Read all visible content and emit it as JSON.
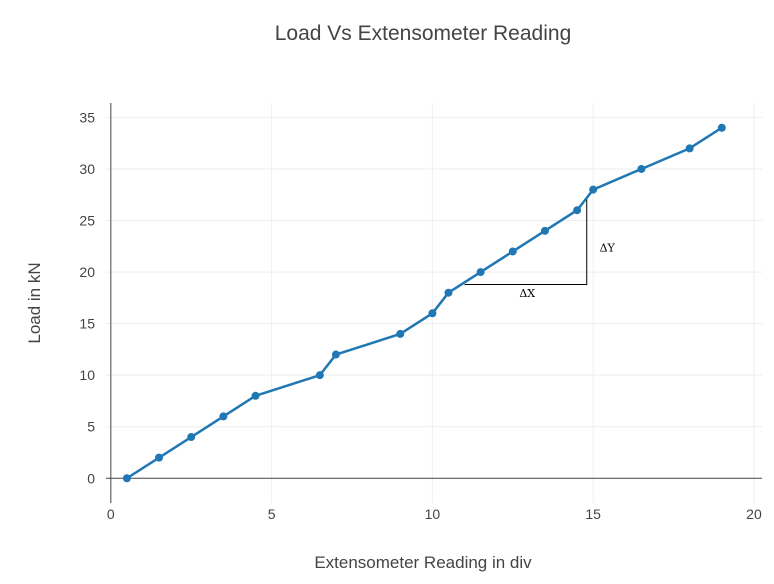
{
  "chart_data": {
    "type": "line",
    "title": "Load Vs Extensometer Reading",
    "xlabel": "Extensometer Reading in div",
    "ylabel": "Load in kN",
    "xlim": [
      -0.15,
      20.25
    ],
    "ylim": [
      -2.4,
      36.4
    ],
    "xticks": [
      0,
      5,
      10,
      15,
      20
    ],
    "yticks": [
      0,
      5,
      10,
      15,
      20,
      25,
      30,
      35
    ],
    "grid": true,
    "legend": "none",
    "series": [
      {
        "x": [
          0.5,
          1.5,
          2.5,
          3.5,
          4.5,
          6.5,
          7,
          9,
          10,
          10.5,
          11.5,
          12.5,
          13.5,
          14.5,
          15,
          16.5,
          18,
          19
        ],
        "y": [
          0,
          2,
          4,
          6,
          8,
          10,
          12,
          14,
          16,
          18,
          20,
          22,
          24,
          26,
          28,
          30,
          32,
          34
        ],
        "color": "#1f77b4"
      }
    ],
    "annotations": {
      "slope_triangle": {
        "x0": 11,
        "x1": 14.8,
        "y0": 18.8,
        "y1": 27.2,
        "color": "#000000"
      },
      "dx_label": {
        "text": "ΔX",
        "x": 12.95,
        "y": 17.6
      },
      "dy_label": {
        "text": "ΔY",
        "x": 15.2,
        "y": 22
      }
    }
  }
}
